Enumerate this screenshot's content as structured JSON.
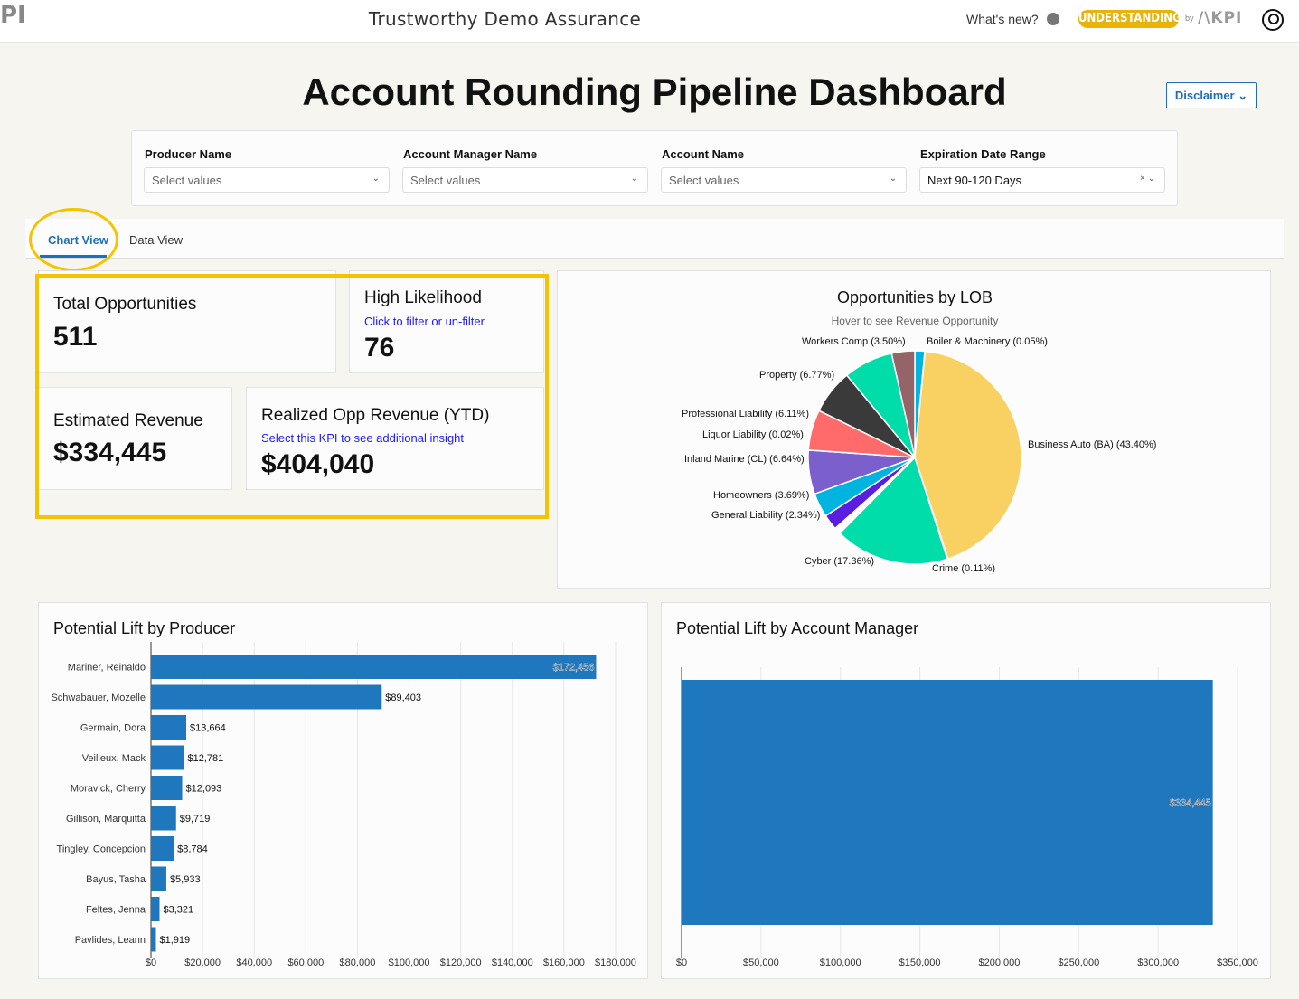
{
  "header": {
    "logo_fragment": "PI",
    "app_title": "Trustworthy Demo Assurance",
    "whats_new": "What's new?",
    "badge": "UNDERSTANDING",
    "badge_by": "by",
    "brand": "/\\KPI",
    "badge_color": "#e8b40a"
  },
  "page_title": "Account Rounding Pipeline Dashboard",
  "disclaimer": "Disclaimer ⌄",
  "filters": [
    {
      "label": "Producer Name",
      "value": "",
      "placeholder": "Select values"
    },
    {
      "label": "Account Manager Name",
      "value": "",
      "placeholder": "Select values"
    },
    {
      "label": "Account Name",
      "value": "",
      "placeholder": "Select values"
    },
    {
      "label": "Expiration Date Range",
      "value": "Next 90-120 Days",
      "placeholder": ""
    }
  ],
  "tabs": [
    {
      "label": "Chart View",
      "active": true
    },
    {
      "label": "Data View",
      "active": false
    }
  ],
  "kpis": {
    "total": {
      "title": "Total Opportunities",
      "value": "511"
    },
    "high": {
      "title": "High Likelihood",
      "subtitle": "Click to filter or un-filter",
      "value": "76"
    },
    "estimated": {
      "title": "Estimated Revenue",
      "value": "$334,445"
    },
    "realized": {
      "title": "Realized Opp Revenue (YTD)",
      "subtitle": "Select this KPI to see additional insight",
      "value": "$404,040"
    }
  },
  "accent_color": "#1f77bd",
  "chart_data": [
    {
      "type": "pie",
      "title": "Opportunities by LOB",
      "subtitle": "Hover to see Revenue Opportunity",
      "slices": [
        {
          "label": "",
          "value": 1.5,
          "color": "#00b4e0"
        },
        {
          "label": "Boiler & Machinery (0.05%)",
          "value": 0.05,
          "color": "#00b4e0"
        },
        {
          "label": "Business Auto (BA) (43.40%)",
          "value": 43.4,
          "color": "#f9d162"
        },
        {
          "label": "Crime (0.11%)",
          "value": 0.11,
          "color": "#ff6b6b"
        },
        {
          "label": "Cyber (17.36%)",
          "value": 17.36,
          "color": "#00dcaa"
        },
        {
          "label": "",
          "value": 1.0,
          "color": "#ffffff"
        },
        {
          "label": "General Liability (2.34%)",
          "value": 2.34,
          "color": "#5a1ee0"
        },
        {
          "label": "Homeowners (3.69%)",
          "value": 3.69,
          "color": "#00b4e0"
        },
        {
          "label": "Inland Marine (CL) (6.64%)",
          "value": 6.64,
          "color": "#7b5fcc"
        },
        {
          "label": "Liquor Liability (0.02%)",
          "value": 0.02,
          "color": "#ff6b6b"
        },
        {
          "label": "Professional Liability (6.11%)",
          "value": 6.11,
          "color": "#ff6b6b"
        },
        {
          "label": "Property (6.77%)",
          "value": 6.77,
          "color": "#3a3a3a"
        },
        {
          "label": "",
          "value": 7.5,
          "color": "#00dcaa"
        },
        {
          "label": "Workers Comp (3.50%)",
          "value": 3.5,
          "color": "#956468"
        }
      ]
    },
    {
      "type": "bar",
      "orientation": "horizontal",
      "title": "Potential Lift by Producer",
      "categories": [
        "Mariner, Reinaldo",
        "Schwabauer, Mozelle",
        "Germain, Dora",
        "Veilleux, Mack",
        "Moravick, Cherry",
        "Gillison, Marquitta",
        "Tingley, Concepcion",
        "Bayus, Tasha",
        "Feltes, Jenna",
        "Pavlides, Leann"
      ],
      "values": [
        172456,
        89403,
        13664,
        12781,
        12093,
        9719,
        8784,
        5933,
        3321,
        1919
      ],
      "value_labels": [
        "$172,456",
        "$89,403",
        "$13,664",
        "$12,781",
        "$12,093",
        "$9,719",
        "$8,784",
        "$5,933",
        "$3,321",
        "$1,919"
      ],
      "xlim": [
        0,
        180000
      ],
      "x_ticks": [
        "$0",
        "$20,000",
        "$40,000",
        "$60,000",
        "$80,000",
        "$100,000",
        "$120,000",
        "$140,000",
        "$160,000",
        "$180,000"
      ],
      "grid": true
    },
    {
      "type": "bar",
      "orientation": "horizontal",
      "title": "Potential Lift by Account Manager",
      "categories": [
        ""
      ],
      "values": [
        334445
      ],
      "value_labels": [
        "$334,445"
      ],
      "xlim": [
        0,
        350000
      ],
      "x_ticks": [
        "$0",
        "$50,000",
        "$100,000",
        "$150,000",
        "$200,000",
        "$250,000",
        "$300,000",
        "$350,000"
      ],
      "grid": true
    }
  ]
}
